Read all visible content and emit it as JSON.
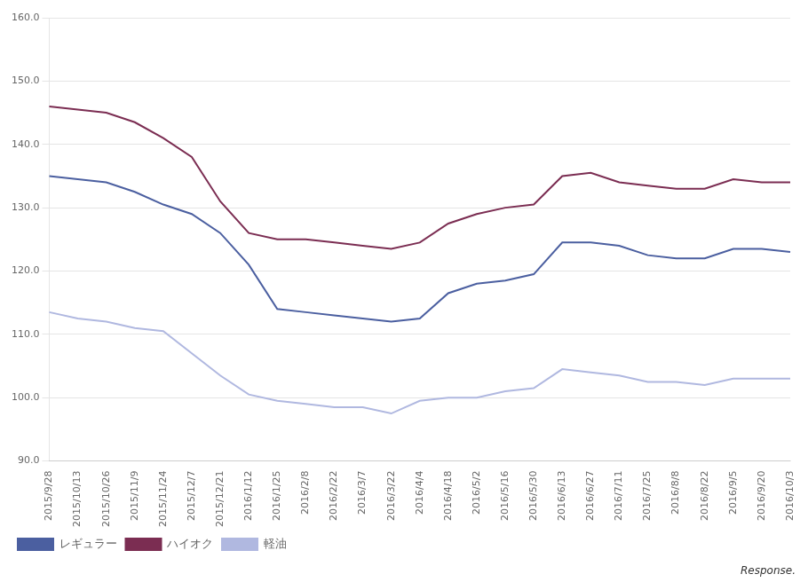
{
  "chart_data": {
    "type": "line",
    "categories": [
      "2015/9/28",
      "2015/10/13",
      "2015/10/26",
      "2015/11/9",
      "2015/11/24",
      "2015/12/7",
      "2015/12/21",
      "2016/1/12",
      "2016/1/25",
      "2016/2/8",
      "2016/2/22",
      "2016/3/7",
      "2016/3/22",
      "2016/4/4",
      "2016/4/18",
      "2016/5/2",
      "2016/5/16",
      "2016/5/30",
      "2016/6/13",
      "2016/6/27",
      "2016/7/11",
      "2016/7/25",
      "2016/8/8",
      "2016/8/22",
      "2016/9/5",
      "2016/9/20",
      "2016/10/3"
    ],
    "series": [
      {
        "name": "レギュラー",
        "color": "#4b5fa0",
        "values": [
          135.0,
          134.5,
          134.0,
          132.5,
          130.5,
          129.0,
          126.0,
          121.0,
          114.0,
          113.5,
          113.0,
          112.5,
          112.0,
          112.5,
          116.5,
          118.0,
          118.5,
          119.5,
          124.5,
          124.5,
          124.0,
          122.5,
          122.0,
          122.0,
          123.5,
          123.5,
          123.0
        ]
      },
      {
        "name": "ハイオク",
        "color": "#7b2d52",
        "values": [
          146.0,
          145.5,
          145.0,
          143.5,
          141.0,
          138.0,
          131.0,
          126.0,
          125.0,
          125.0,
          124.5,
          124.0,
          123.5,
          124.5,
          127.5,
          129.0,
          130.0,
          130.5,
          135.0,
          135.5,
          134.0,
          133.5,
          133.0,
          133.0,
          134.5,
          134.0,
          134.0
        ]
      },
      {
        "name": "軽油",
        "color": "#b0b8e0",
        "values": [
          113.5,
          112.5,
          112.0,
          111.0,
          110.5,
          107.0,
          103.5,
          100.5,
          99.5,
          99.0,
          98.5,
          98.5,
          97.5,
          99.5,
          100.0,
          100.0,
          101.0,
          101.5,
          104.5,
          104.0,
          103.5,
          102.5,
          102.5,
          102.0,
          103.0,
          103.0,
          103.0
        ]
      }
    ],
    "ylim": [
      90,
      160
    ],
    "yticks": [
      {
        "value": 90,
        "label": "90.0"
      },
      {
        "value": 100,
        "label": "100.0"
      },
      {
        "value": 110,
        "label": "110.0"
      },
      {
        "value": 120,
        "label": "120.0"
      },
      {
        "value": 130,
        "label": "130.0"
      },
      {
        "value": 140,
        "label": "140.0"
      },
      {
        "value": 150,
        "label": "150.0"
      },
      {
        "value": 160,
        "label": "160.0"
      }
    ],
    "grid": true,
    "legend": "lower left",
    "annotations": [
      "Response."
    ]
  }
}
